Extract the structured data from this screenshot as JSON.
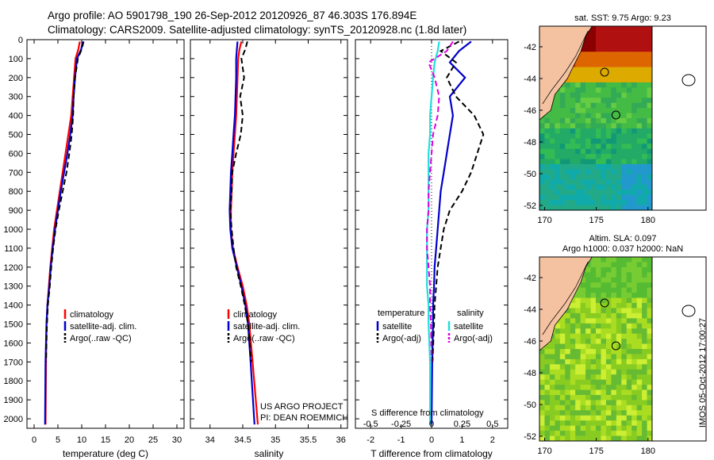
{
  "header": {
    "line1": "Argo profile: AO 5901798_190 26-Sep-2012 20120926_87 46.303S 176.894E",
    "line2": "Climatology: CARS2009. Satellite-adjusted climatology: synTS_20120928.nc (1.8d later)"
  },
  "colors": {
    "climatology": "#ff0000",
    "satellite": "#0000cc",
    "argo": "#000000",
    "sal_satellite": "#22dddd",
    "sal_argo": "#dd00dd"
  },
  "chart_data": [
    {
      "type": "line",
      "panel": "temperature",
      "xlabel": "temperature (deg C)",
      "ylabel": "",
      "xlim": [
        -1.5,
        31.5
      ],
      "ylim": [
        2050,
        0
      ],
      "xticks": [
        0,
        5,
        10,
        15,
        20,
        25,
        30
      ],
      "yticks": [
        0,
        100,
        200,
        300,
        400,
        500,
        600,
        700,
        800,
        900,
        1000,
        1100,
        1200,
        1300,
        1400,
        1500,
        1600,
        1700,
        1800,
        1900,
        2000
      ],
      "legend": [
        "climatology",
        "satellite-adj. clim.",
        "Argo(..raw -QC)"
      ],
      "series": [
        {
          "name": "climatology",
          "style": "solid",
          "color": "#ff0000",
          "x": [
            9.6,
            9.3,
            8.7,
            8.4,
            8.1,
            7.8,
            7.2,
            6.6,
            6.0,
            5.4,
            4.8,
            4.2,
            3.8,
            3.4,
            3.1,
            2.8,
            2.6,
            2.5,
            2.4
          ],
          "y": [
            10,
            50,
            100,
            200,
            300,
            400,
            500,
            600,
            700,
            800,
            900,
            1000,
            1100,
            1200,
            1300,
            1400,
            1500,
            1700,
            2030
          ]
        },
        {
          "name": "satellite-adj. clim.",
          "style": "solid",
          "color": "#0000cc",
          "x": [
            10.2,
            9.9,
            9.0,
            8.6,
            8.3,
            8.1,
            7.6,
            7.0,
            6.3,
            5.6,
            5.0,
            4.4,
            3.9,
            3.5,
            3.2,
            2.8,
            2.6,
            2.4,
            2.3
          ],
          "y": [
            10,
            50,
            100,
            200,
            300,
            400,
            500,
            600,
            700,
            800,
            900,
            1000,
            1100,
            1200,
            1300,
            1400,
            1500,
            1700,
            2030
          ]
        },
        {
          "name": "Argo(..raw -QC)",
          "style": "dash",
          "color": "#000000",
          "x": [
            10.4,
            10.0,
            9.2,
            8.6,
            8.3,
            8.2,
            7.9,
            7.4,
            6.8,
            6.0,
            5.2,
            4.5,
            4.0,
            3.6,
            3.3,
            2.9,
            2.7,
            2.5
          ],
          "y": [
            10,
            50,
            100,
            200,
            300,
            400,
            500,
            600,
            700,
            800,
            900,
            1000,
            1100,
            1200,
            1300,
            1400,
            1500,
            1700
          ]
        }
      ]
    },
    {
      "type": "line",
      "panel": "salinity",
      "xlabel": "salinity",
      "xlim": [
        33.7,
        36.1
      ],
      "ylim": [
        2050,
        0
      ],
      "xticks": [
        34,
        34.5,
        35,
        35.5,
        36
      ],
      "legend": [
        "climatology",
        "satellite-adj. clim.",
        "Argo(..raw -QC)"
      ],
      "series": [
        {
          "name": "climatology",
          "style": "solid",
          "color": "#ff0000",
          "x": [
            34.48,
            34.45,
            34.43,
            34.42,
            34.41,
            34.4,
            34.38,
            34.36,
            34.34,
            34.33,
            34.32,
            34.32,
            34.35,
            34.42,
            34.5,
            34.56,
            34.6,
            34.65,
            34.73
          ],
          "y": [
            10,
            50,
            100,
            200,
            300,
            400,
            500,
            600,
            700,
            800,
            900,
            1000,
            1100,
            1200,
            1300,
            1400,
            1500,
            1700,
            2030
          ]
        },
        {
          "name": "satellite-adj. clim.",
          "style": "solid",
          "color": "#0000cc",
          "x": [
            34.42,
            34.41,
            34.4,
            34.4,
            34.39,
            34.38,
            34.36,
            34.34,
            34.32,
            34.31,
            34.3,
            34.31,
            34.34,
            34.41,
            34.48,
            34.54,
            34.58,
            34.62,
            34.68
          ],
          "y": [
            10,
            50,
            100,
            200,
            300,
            400,
            500,
            600,
            700,
            800,
            900,
            1000,
            1100,
            1200,
            1300,
            1400,
            1500,
            1700,
            2030
          ]
        },
        {
          "name": "Argo(..raw -QC)",
          "style": "dash",
          "color": "#000000",
          "x": [
            34.57,
            34.54,
            34.48,
            34.52,
            34.46,
            34.5,
            34.47,
            34.4,
            34.34,
            34.33,
            34.31,
            34.33,
            34.36,
            34.4,
            34.47,
            34.53,
            34.58,
            34.63
          ],
          "y": [
            10,
            50,
            100,
            200,
            300,
            400,
            500,
            600,
            700,
            800,
            900,
            1000,
            1100,
            1200,
            1300,
            1400,
            1500,
            1700
          ]
        }
      ],
      "annotation": [
        "US ARGO PROJECT",
        "PI: DEAN ROEMMICH"
      ]
    },
    {
      "type": "line",
      "panel": "difference",
      "xlabel": "T difference from climatology",
      "x2label": "S difference from climatology",
      "xlim": [
        -2.5,
        2.5
      ],
      "ylim": [
        2050,
        0
      ],
      "xticks": [
        -2,
        -1,
        0,
        1,
        2
      ],
      "xticklabels": [
        "-2",
        "-1",
        "0",
        "1",
        "2"
      ],
      "x2ticks": [
        -0.5,
        -0.25,
        0,
        0.25,
        0.5
      ],
      "x2ticklabels": [
        "-0.5",
        "-0.25",
        "0",
        "0.25",
        "0.5"
      ],
      "legend_groups": [
        {
          "title": "temperature",
          "items": [
            "satellite",
            "Argo(-adj)"
          ]
        },
        {
          "title": "salinity",
          "items": [
            "satellite",
            "Argo(-adj)"
          ]
        }
      ],
      "series": [
        {
          "name": "temperature satellite",
          "style": "solid",
          "color": "#0000cc",
          "x": [
            1.3,
            0.9,
            0.6,
            1.1,
            0.6,
            0.7,
            0.6,
            0.5,
            0.4,
            0.3,
            0.25,
            0.2,
            0.15,
            0.1,
            0.08,
            0.05,
            0.05,
            0.02,
            0.0
          ],
          "y": [
            10,
            60,
            120,
            200,
            300,
            400,
            500,
            600,
            700,
            800,
            900,
            1000,
            1100,
            1200,
            1300,
            1400,
            1500,
            1700,
            2030
          ]
        },
        {
          "name": "temperature Argo(-adj)",
          "style": "dash",
          "color": "#000000",
          "x": [
            0.9,
            0.3,
            0.8,
            0.5,
            0.8,
            1.4,
            1.7,
            1.5,
            1.3,
            1.0,
            0.6,
            0.4,
            0.3,
            0.2,
            0.15,
            0.1,
            0.08,
            0.03
          ],
          "y": [
            10,
            60,
            120,
            200,
            300,
            400,
            500,
            600,
            700,
            800,
            900,
            1000,
            1100,
            1200,
            1300,
            1400,
            1500,
            1700
          ]
        },
        {
          "name": "salinity satellite",
          "style": "solid",
          "color": "#22dddd",
          "x": [
            0.25,
            0.2,
            0.1,
            0.05,
            0.0,
            -0.05,
            -0.05,
            -0.1,
            -0.1,
            -0.1,
            -0.1,
            -0.15,
            -0.15,
            -0.15,
            -0.15,
            -0.1,
            -0.1,
            -0.05,
            -0.05
          ],
          "y": [
            10,
            60,
            120,
            200,
            300,
            400,
            500,
            600,
            700,
            800,
            900,
            1000,
            1100,
            1200,
            1300,
            1400,
            1500,
            1700,
            2030
          ]
        },
        {
          "name": "salinity Argo(-adj)",
          "style": "dash",
          "color": "#dd00dd",
          "x": [
            0.7,
            0.5,
            -0.1,
            0.1,
            0.25,
            0.2,
            0.05,
            0.0,
            -0.05,
            -0.1,
            -0.1,
            -0.15,
            -0.15,
            -0.1,
            -0.05,
            -0.05,
            -0.02,
            0.0
          ],
          "y": [
            10,
            60,
            120,
            200,
            300,
            400,
            500,
            600,
            700,
            800,
            900,
            1000,
            1100,
            1200,
            1300,
            1400,
            1500,
            1700
          ]
        }
      ]
    },
    {
      "type": "heatmap",
      "panel": "sst-map",
      "title": "sat. SST: 9.75 Argo: 9.23",
      "xlim": [
        169.5,
        184.5
      ],
      "ylim": [
        -52.3,
        -40.7
      ],
      "xticks": [
        170,
        175,
        180
      ],
      "yticks": [
        -42,
        -44,
        -46,
        -48,
        -50,
        -52
      ]
    },
    {
      "type": "heatmap",
      "panel": "sla-map",
      "title": [
        "Altim. SLA: 0.097",
        "Argo h1000: 0.037 h2000: NaN"
      ],
      "xlim": [
        169.5,
        184.5
      ],
      "ylim": [
        -52.3,
        -40.7
      ],
      "xticks": [
        170,
        175,
        180
      ],
      "yticks": [
        -42,
        -44,
        -46,
        -48,
        -50,
        -52
      ]
    }
  ],
  "footer": {
    "credit": "IMOS 05-Oct-2012 17:00:27"
  }
}
